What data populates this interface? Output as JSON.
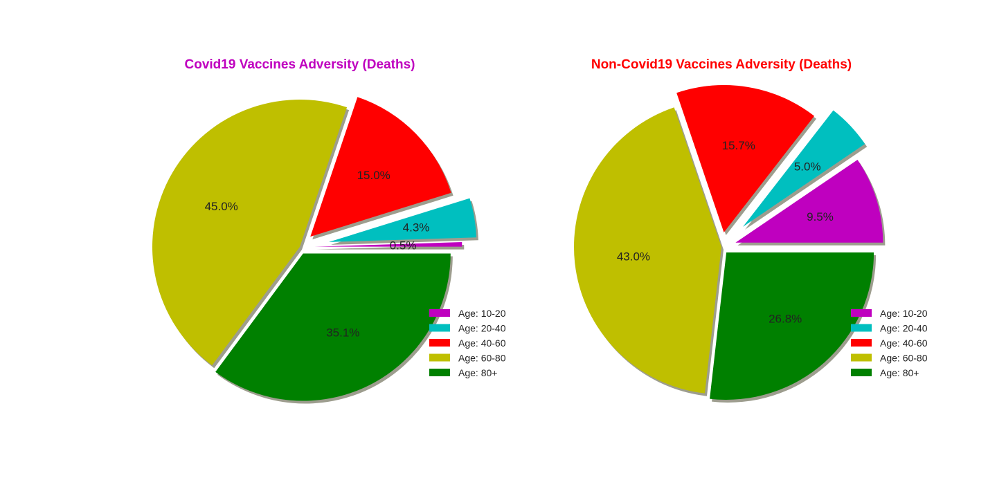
{
  "colors": {
    "age_10_20": "#bf00bf",
    "age_20_40": "#00bfbf",
    "age_40_60": "#ff0000",
    "age_60_80": "#bfbf00",
    "age_80_plus": "#008000",
    "shadow": "#8c8c7a"
  },
  "chart_data": [
    {
      "type": "pie",
      "title": "Covid19 Vaccines Adversity (Deaths)",
      "title_color": "#bf00bf",
      "categories": [
        "Age: 10-20",
        "Age: 20-40",
        "Age: 40-60",
        "Age: 60-80",
        "Age: 80+"
      ],
      "values": [
        0.5,
        4.3,
        15.0,
        45.0,
        35.1
      ],
      "labels": [
        "0.5%",
        "4.3%",
        "15.0%",
        "45.0%",
        "35.1%"
      ],
      "explode": [
        0.1,
        0.2,
        0.1,
        0.0,
        0.05
      ],
      "shadow": true,
      "legend_loc": "lower right"
    },
    {
      "type": "pie",
      "title": "Non-Covid19 Vaccines Adversity (Deaths)",
      "title_color": "#ff0000",
      "categories": [
        "Age: 10-20",
        "Age: 20-40",
        "Age: 40-60",
        "Age: 60-80",
        "Age: 80+"
      ],
      "values": [
        9.5,
        5.0,
        15.7,
        43.0,
        26.8
      ],
      "labels": [
        "9.5%",
        "5.0%",
        "15.7%",
        "43.0%",
        "26.8%"
      ],
      "explode": [
        0.1,
        0.2,
        0.1,
        0.0,
        0.05
      ],
      "shadow": true,
      "legend_loc": "lower right"
    }
  ]
}
